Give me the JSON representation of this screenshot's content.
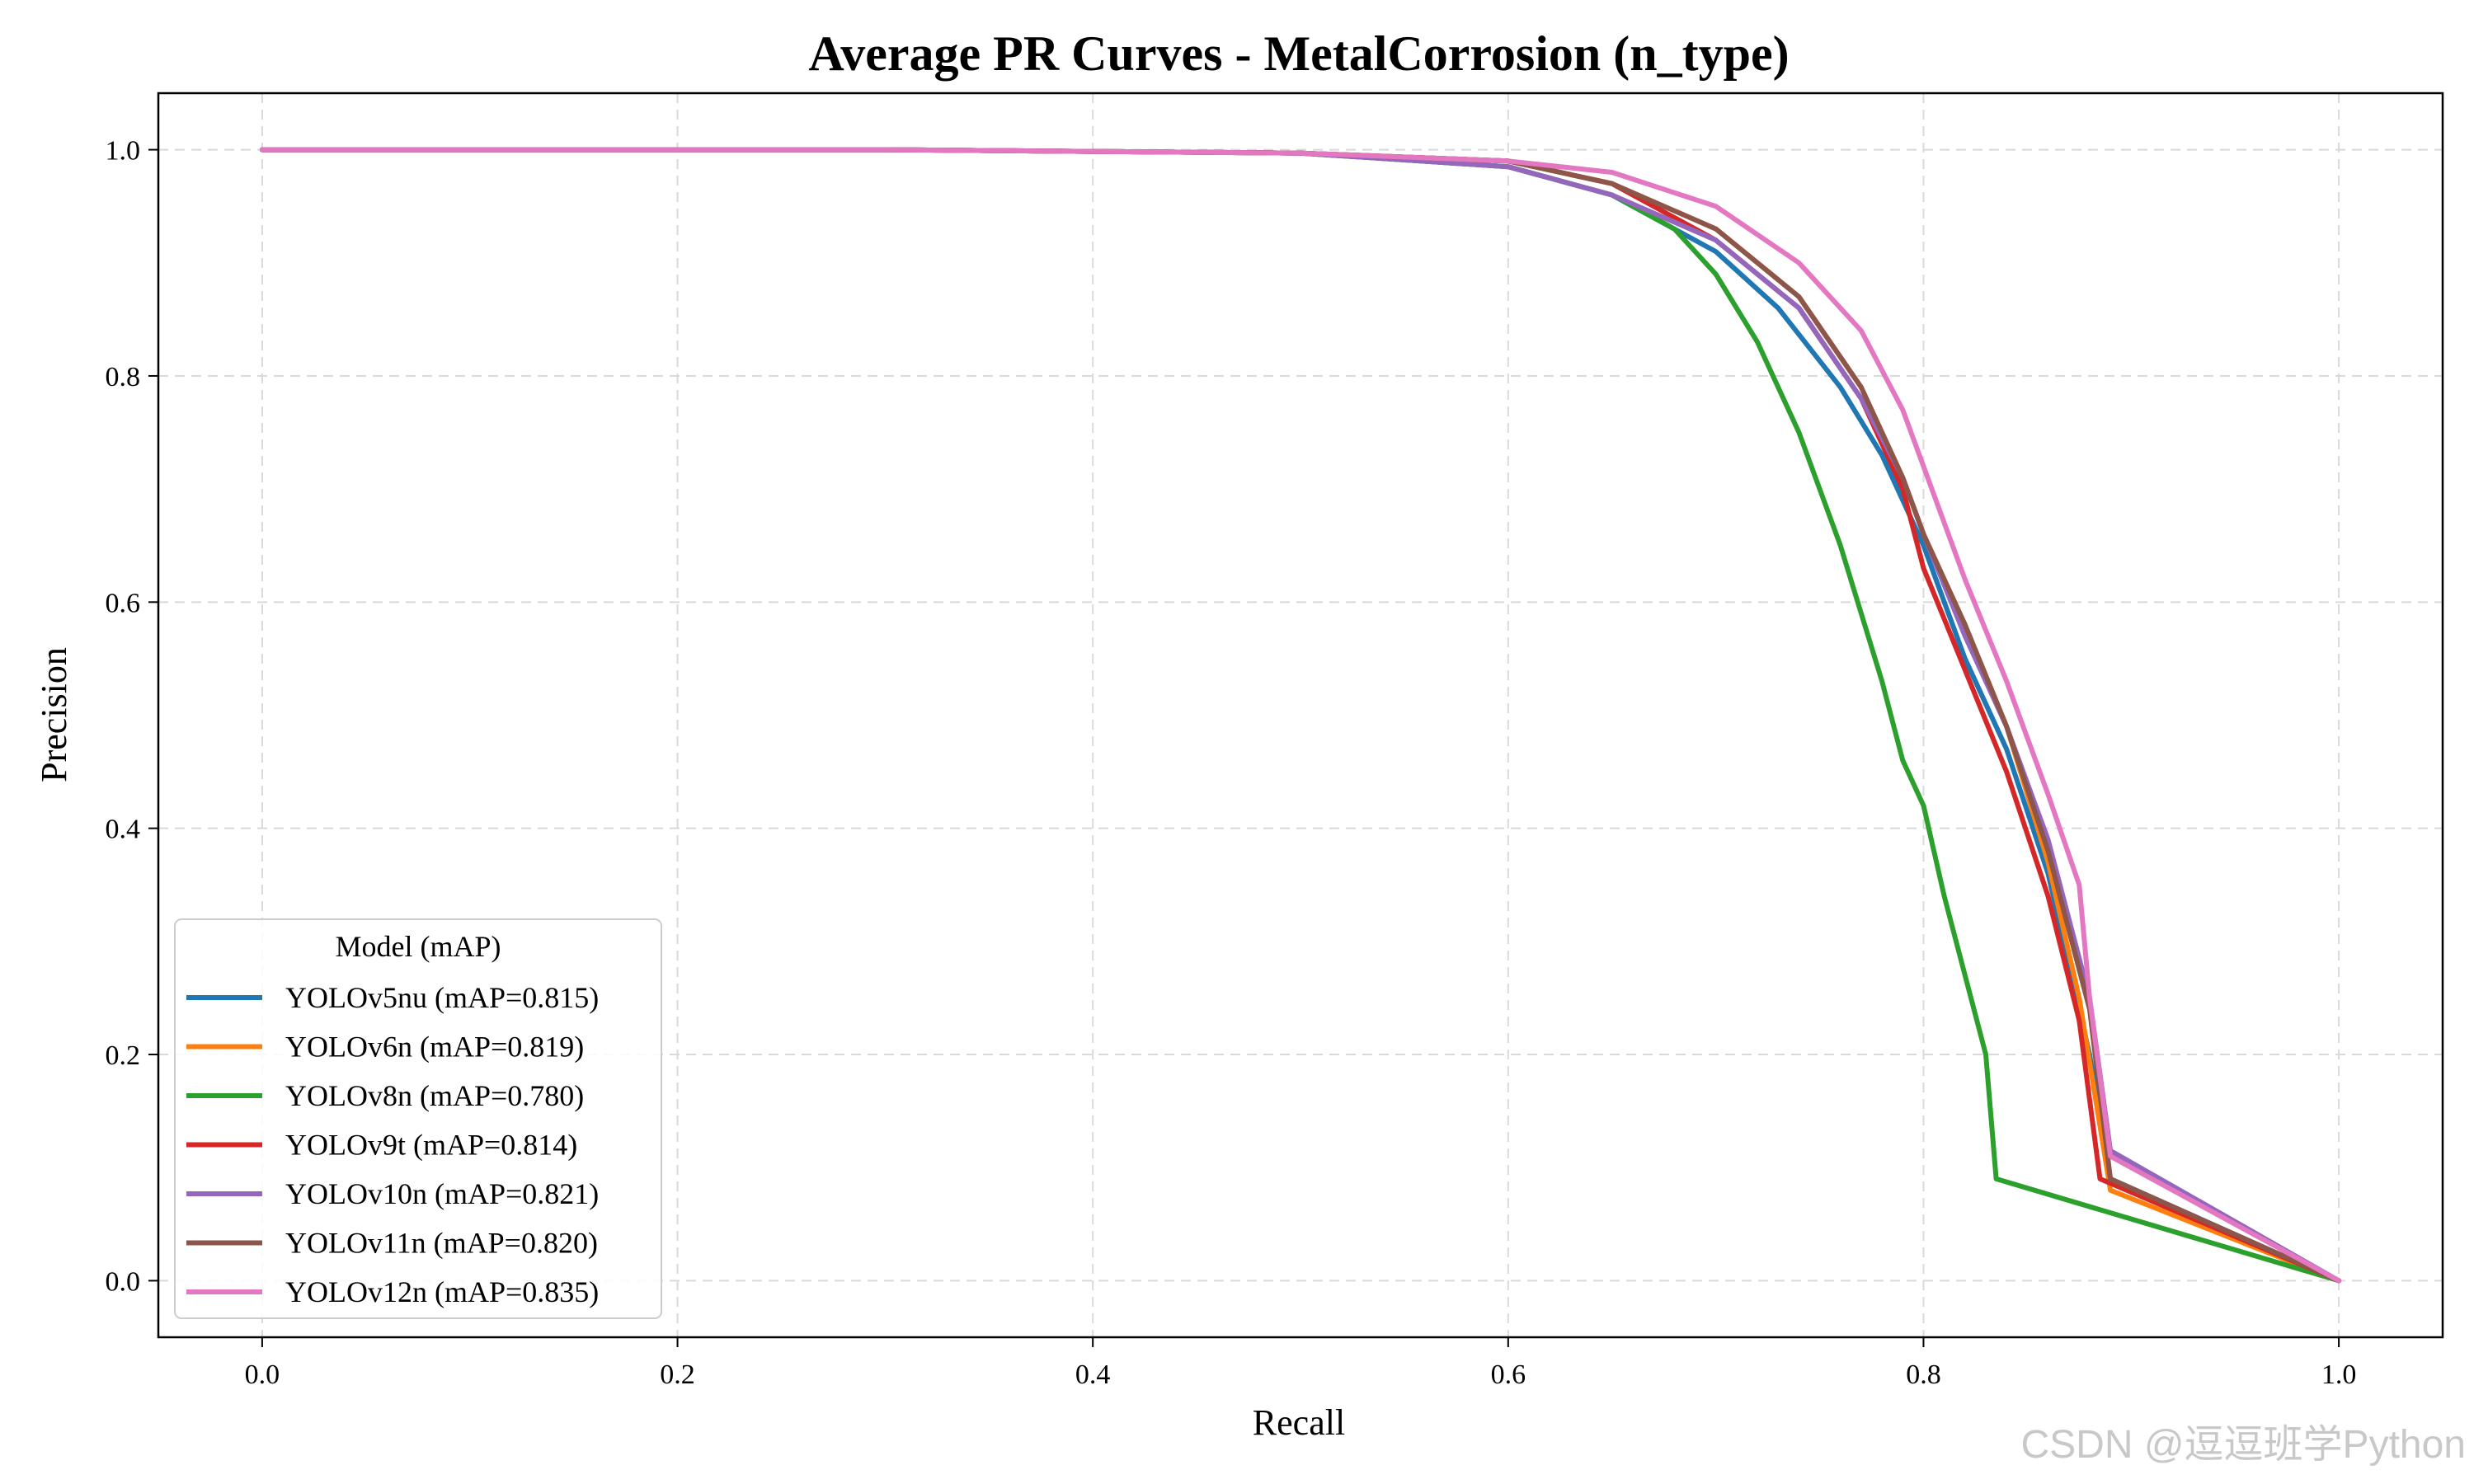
{
  "watermark": "CSDN @逗逗班学Python",
  "chart_data": {
    "type": "line",
    "title": "Average PR Curves - MetalCorrosion (n_type)",
    "xlabel": "Recall",
    "ylabel": "Precision",
    "xlim": [
      -0.05,
      1.05
    ],
    "ylim": [
      -0.05,
      1.05
    ],
    "xticks": [
      "0.0",
      "0.2",
      "0.4",
      "0.6",
      "0.8",
      "1.0"
    ],
    "yticks": [
      "0.0",
      "0.2",
      "0.4",
      "0.6",
      "0.8",
      "1.0"
    ],
    "grid": true,
    "legend": {
      "title": "Model (mAP)",
      "placement": "lower-left"
    },
    "series": [
      {
        "name": "YOLOv5nu (mAP=0.815)",
        "color": "#1f77b4",
        "x": [
          0,
          0.3,
          0.5,
          0.6,
          0.65,
          0.7,
          0.73,
          0.76,
          0.78,
          0.8,
          0.82,
          0.84,
          0.86,
          0.88,
          0.89,
          1.0
        ],
        "y": [
          1.0,
          1.0,
          0.997,
          0.985,
          0.96,
          0.91,
          0.86,
          0.79,
          0.73,
          0.65,
          0.55,
          0.47,
          0.36,
          0.2,
          0.09,
          0.0
        ]
      },
      {
        "name": "YOLOv6n (mAP=0.819)",
        "color": "#ff7f0e",
        "x": [
          0,
          0.3,
          0.5,
          0.6,
          0.65,
          0.7,
          0.74,
          0.77,
          0.79,
          0.8,
          0.82,
          0.84,
          0.86,
          0.875,
          0.89,
          1.0
        ],
        "y": [
          1.0,
          1.0,
          0.997,
          0.99,
          0.97,
          0.93,
          0.87,
          0.79,
          0.71,
          0.66,
          0.58,
          0.49,
          0.37,
          0.25,
          0.08,
          0.0
        ]
      },
      {
        "name": "YOLOv8n (mAP=0.780)",
        "color": "#2ca02c",
        "x": [
          0,
          0.3,
          0.5,
          0.6,
          0.65,
          0.68,
          0.7,
          0.72,
          0.74,
          0.76,
          0.78,
          0.79,
          0.8,
          0.81,
          0.82,
          0.83,
          0.835,
          1.0
        ],
        "y": [
          1.0,
          1.0,
          0.997,
          0.985,
          0.96,
          0.93,
          0.89,
          0.83,
          0.75,
          0.65,
          0.53,
          0.46,
          0.42,
          0.34,
          0.27,
          0.2,
          0.09,
          0.0
        ]
      },
      {
        "name": "YOLOv9t (mAP=0.814)",
        "color": "#d62728",
        "x": [
          0,
          0.3,
          0.5,
          0.6,
          0.65,
          0.7,
          0.74,
          0.77,
          0.79,
          0.8,
          0.82,
          0.84,
          0.86,
          0.875,
          0.885,
          1.0
        ],
        "y": [
          1.0,
          1.0,
          0.997,
          0.99,
          0.97,
          0.92,
          0.86,
          0.78,
          0.7,
          0.63,
          0.54,
          0.45,
          0.34,
          0.23,
          0.09,
          0.0
        ]
      },
      {
        "name": "YOLOv10n (mAP=0.821)",
        "color": "#9467bd",
        "x": [
          0,
          0.3,
          0.5,
          0.6,
          0.65,
          0.7,
          0.74,
          0.77,
          0.79,
          0.8,
          0.82,
          0.84,
          0.86,
          0.88,
          0.89,
          1.0
        ],
        "y": [
          1.0,
          1.0,
          0.997,
          0.985,
          0.96,
          0.92,
          0.86,
          0.78,
          0.71,
          0.66,
          0.57,
          0.49,
          0.39,
          0.25,
          0.115,
          0.0
        ]
      },
      {
        "name": "YOLOv11n (mAP=0.820)",
        "color": "#8c564b",
        "x": [
          0,
          0.3,
          0.5,
          0.6,
          0.65,
          0.7,
          0.74,
          0.77,
          0.79,
          0.8,
          0.82,
          0.84,
          0.86,
          0.88,
          0.89,
          1.0
        ],
        "y": [
          1.0,
          1.0,
          0.997,
          0.99,
          0.97,
          0.93,
          0.87,
          0.79,
          0.71,
          0.66,
          0.58,
          0.49,
          0.38,
          0.24,
          0.09,
          0.0
        ]
      },
      {
        "name": "YOLOv12n (mAP=0.835)",
        "color": "#e377c2",
        "x": [
          0,
          0.3,
          0.5,
          0.6,
          0.65,
          0.7,
          0.74,
          0.77,
          0.79,
          0.8,
          0.82,
          0.84,
          0.86,
          0.875,
          0.88,
          0.89,
          1.0
        ],
        "y": [
          1.0,
          1.0,
          0.997,
          0.99,
          0.98,
          0.95,
          0.9,
          0.84,
          0.77,
          0.72,
          0.62,
          0.53,
          0.43,
          0.35,
          0.25,
          0.11,
          0.0
        ]
      }
    ]
  }
}
